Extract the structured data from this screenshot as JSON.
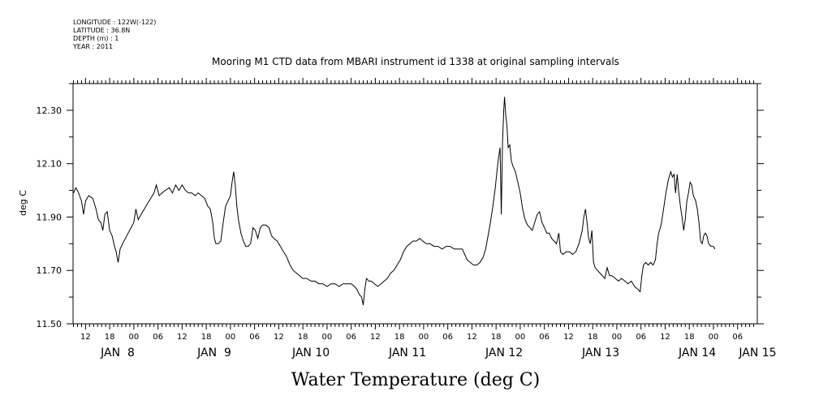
{
  "header": {
    "longitude": "LONGITUDE : 122W(-122)",
    "latitude": "LATITUDE : 36.8N",
    "depth": "DEPTH (m) : 1",
    "year": "YEAR : 2011"
  },
  "chart_data": {
    "type": "line",
    "title": "Mooring M1 CTD data from MBARI instrument id 1338 at original sampling intervals",
    "xlabel": "Water Temperature (deg C)",
    "ylabel": "deg C",
    "ylim": [
      11.5,
      12.4
    ],
    "yticks": [
      "12.30",
      "12.10",
      "11.90",
      "11.70",
      "11.50"
    ],
    "x_unit": "hours since Jan 7 2011 00:00",
    "xlim": [
      14.9,
      184.9
    ],
    "hour_ticks": [
      {
        "x": 18,
        "label": "12"
      },
      {
        "x": 24,
        "label": "18"
      },
      {
        "x": 30,
        "label": "00"
      },
      {
        "x": 36,
        "label": "06"
      },
      {
        "x": 42,
        "label": "12"
      },
      {
        "x": 48,
        "label": "18"
      },
      {
        "x": 54,
        "label": "00"
      },
      {
        "x": 60,
        "label": "06"
      },
      {
        "x": 66,
        "label": "12"
      },
      {
        "x": 72,
        "label": "18"
      },
      {
        "x": 78,
        "label": "00"
      },
      {
        "x": 84,
        "label": "06"
      },
      {
        "x": 90,
        "label": "12"
      },
      {
        "x": 96,
        "label": "18"
      },
      {
        "x": 102,
        "label": "00"
      },
      {
        "x": 108,
        "label": "06"
      },
      {
        "x": 114,
        "label": "12"
      },
      {
        "x": 120,
        "label": "18"
      },
      {
        "x": 126,
        "label": "00"
      },
      {
        "x": 132,
        "label": "06"
      },
      {
        "x": 138,
        "label": "12"
      },
      {
        "x": 144,
        "label": "18"
      },
      {
        "x": 150,
        "label": "00"
      },
      {
        "x": 156,
        "label": "06"
      },
      {
        "x": 162,
        "label": "12"
      },
      {
        "x": 168,
        "label": "18"
      },
      {
        "x": 174,
        "label": "00"
      },
      {
        "x": 180,
        "label": "06"
      }
    ],
    "day_labels": [
      {
        "x": 26,
        "label": "JAN  8"
      },
      {
        "x": 50,
        "label": "JAN  9"
      },
      {
        "x": 74,
        "label": "JAN 10"
      },
      {
        "x": 98,
        "label": "JAN 11"
      },
      {
        "x": 122,
        "label": "JAN 12"
      },
      {
        "x": 146,
        "label": "JAN 13"
      },
      {
        "x": 170,
        "label": "JAN 14"
      },
      {
        "x": 185,
        "label": "JAN 15"
      }
    ],
    "grid": false,
    "series": [
      {
        "points": [
          [
            15.0,
            11.99
          ],
          [
            15.6,
            12.01
          ],
          [
            16.3,
            11.99
          ],
          [
            17.0,
            11.96
          ],
          [
            17.5,
            11.91
          ],
          [
            18.0,
            11.96
          ],
          [
            18.8,
            11.98
          ],
          [
            19.8,
            11.97
          ],
          [
            20.6,
            11.93
          ],
          [
            21.2,
            11.89
          ],
          [
            21.8,
            11.88
          ],
          [
            22.3,
            11.85
          ],
          [
            22.8,
            11.91
          ],
          [
            23.4,
            11.92
          ],
          [
            24.0,
            11.85
          ],
          [
            24.6,
            11.83
          ],
          [
            25.2,
            11.79
          ],
          [
            25.6,
            11.77
          ],
          [
            26.1,
            11.73
          ],
          [
            26.6,
            11.78
          ],
          [
            27.2,
            11.8
          ],
          [
            27.9,
            11.82
          ],
          [
            28.6,
            11.84
          ],
          [
            29.3,
            11.86
          ],
          [
            30.0,
            11.88
          ],
          [
            30.5,
            11.93
          ],
          [
            31.1,
            11.89
          ],
          [
            31.8,
            11.91
          ],
          [
            32.6,
            11.93
          ],
          [
            33.4,
            11.95
          ],
          [
            34.2,
            11.97
          ],
          [
            35.0,
            11.99
          ],
          [
            35.6,
            12.02
          ],
          [
            36.3,
            11.98
          ],
          [
            37.0,
            11.99
          ],
          [
            37.8,
            12.0
          ],
          [
            38.8,
            12.01
          ],
          [
            39.6,
            11.99
          ],
          [
            40.4,
            12.02
          ],
          [
            41.2,
            12.0
          ],
          [
            42.0,
            12.02
          ],
          [
            42.8,
            12.0
          ],
          [
            43.6,
            11.99
          ],
          [
            44.4,
            11.99
          ],
          [
            45.2,
            11.98
          ],
          [
            46.0,
            11.99
          ],
          [
            46.8,
            11.98
          ],
          [
            47.6,
            11.97
          ],
          [
            48.4,
            11.94
          ],
          [
            49.0,
            11.93
          ],
          [
            49.6,
            11.88
          ],
          [
            50.0,
            11.82
          ],
          [
            50.4,
            11.8
          ],
          [
            51.0,
            11.8
          ],
          [
            51.6,
            11.81
          ],
          [
            52.2,
            11.88
          ],
          [
            52.8,
            11.94
          ],
          [
            53.4,
            11.96
          ],
          [
            54.0,
            11.98
          ],
          [
            54.4,
            12.03
          ],
          [
            54.8,
            12.07
          ],
          [
            55.2,
            12.02
          ],
          [
            55.6,
            11.94
          ],
          [
            56.0,
            11.89
          ],
          [
            56.6,
            11.84
          ],
          [
            57.2,
            11.81
          ],
          [
            57.8,
            11.79
          ],
          [
            58.4,
            11.79
          ],
          [
            59.0,
            11.8
          ],
          [
            59.6,
            11.86
          ],
          [
            60.2,
            11.85
          ],
          [
            60.8,
            11.82
          ],
          [
            61.4,
            11.86
          ],
          [
            62.0,
            11.87
          ],
          [
            62.8,
            11.87
          ],
          [
            63.6,
            11.86
          ],
          [
            64.2,
            11.83
          ],
          [
            64.8,
            11.82
          ],
          [
            65.6,
            11.81
          ],
          [
            66.4,
            11.79
          ],
          [
            67.2,
            11.77
          ],
          [
            68.0,
            11.75
          ],
          [
            68.8,
            11.72
          ],
          [
            69.6,
            11.7
          ],
          [
            70.4,
            11.69
          ],
          [
            71.2,
            11.68
          ],
          [
            72.0,
            11.67
          ],
          [
            73.0,
            11.67
          ],
          [
            74.0,
            11.66
          ],
          [
            75.0,
            11.66
          ],
          [
            76.0,
            11.65
          ],
          [
            77.0,
            11.65
          ],
          [
            78.0,
            11.64
          ],
          [
            79.0,
            11.65
          ],
          [
            80.0,
            11.65
          ],
          [
            81.0,
            11.64
          ],
          [
            82.0,
            11.65
          ],
          [
            83.0,
            11.65
          ],
          [
            84.0,
            11.65
          ],
          [
            84.8,
            11.64
          ],
          [
            85.4,
            11.63
          ],
          [
            86.0,
            11.61
          ],
          [
            86.6,
            11.6
          ],
          [
            87.0,
            11.57
          ],
          [
            87.4,
            11.63
          ],
          [
            87.8,
            11.67
          ],
          [
            88.4,
            11.66
          ],
          [
            89.0,
            11.66
          ],
          [
            89.8,
            11.65
          ],
          [
            90.6,
            11.64
          ],
          [
            91.4,
            11.65
          ],
          [
            92.2,
            11.66
          ],
          [
            93.0,
            11.67
          ],
          [
            93.8,
            11.69
          ],
          [
            94.6,
            11.7
          ],
          [
            95.4,
            11.72
          ],
          [
            96.2,
            11.74
          ],
          [
            97.0,
            11.77
          ],
          [
            97.8,
            11.79
          ],
          [
            98.6,
            11.8
          ],
          [
            99.4,
            11.81
          ],
          [
            100.2,
            11.81
          ],
          [
            101.0,
            11.82
          ],
          [
            101.8,
            11.81
          ],
          [
            102.6,
            11.8
          ],
          [
            103.6,
            11.8
          ],
          [
            104.6,
            11.79
          ],
          [
            105.6,
            11.79
          ],
          [
            106.6,
            11.78
          ],
          [
            107.6,
            11.79
          ],
          [
            108.6,
            11.79
          ],
          [
            109.6,
            11.78
          ],
          [
            110.6,
            11.78
          ],
          [
            111.6,
            11.78
          ],
          [
            112.2,
            11.76
          ],
          [
            112.8,
            11.74
          ],
          [
            113.6,
            11.73
          ],
          [
            114.4,
            11.72
          ],
          [
            115.2,
            11.72
          ],
          [
            116.0,
            11.73
          ],
          [
            116.8,
            11.75
          ],
          [
            117.4,
            11.78
          ],
          [
            118.0,
            11.83
          ],
          [
            118.6,
            11.88
          ],
          [
            119.2,
            11.94
          ],
          [
            119.8,
            12.01
          ],
          [
            120.2,
            12.07
          ],
          [
            120.6,
            12.12
          ],
          [
            121.0,
            12.16
          ],
          [
            121.3,
            11.91
          ],
          [
            121.6,
            12.18
          ],
          [
            121.9,
            12.3
          ],
          [
            122.1,
            12.35
          ],
          [
            122.4,
            12.28
          ],
          [
            122.7,
            12.24
          ],
          [
            123.0,
            12.16
          ],
          [
            123.4,
            12.17
          ],
          [
            123.8,
            12.11
          ],
          [
            124.2,
            12.09
          ],
          [
            124.8,
            12.07
          ],
          [
            125.4,
            12.03
          ],
          [
            126.0,
            11.99
          ],
          [
            126.6,
            11.93
          ],
          [
            127.2,
            11.89
          ],
          [
            127.8,
            11.87
          ],
          [
            128.4,
            11.86
          ],
          [
            129.0,
            11.85
          ],
          [
            129.6,
            11.88
          ],
          [
            130.2,
            11.91
          ],
          [
            130.8,
            11.92
          ],
          [
            131.4,
            11.88
          ],
          [
            132.0,
            11.86
          ],
          [
            132.6,
            11.84
          ],
          [
            133.2,
            11.84
          ],
          [
            133.8,
            11.82
          ],
          [
            134.4,
            11.81
          ],
          [
            135.0,
            11.8
          ],
          [
            135.6,
            11.84
          ],
          [
            136.0,
            11.77
          ],
          [
            136.6,
            11.76
          ],
          [
            137.4,
            11.77
          ],
          [
            138.2,
            11.77
          ],
          [
            139.0,
            11.76
          ],
          [
            139.8,
            11.77
          ],
          [
            140.6,
            11.8
          ],
          [
            141.4,
            11.85
          ],
          [
            141.8,
            11.9
          ],
          [
            142.2,
            11.93
          ],
          [
            142.6,
            11.88
          ],
          [
            143.0,
            11.82
          ],
          [
            143.4,
            11.8
          ],
          [
            143.8,
            11.85
          ],
          [
            144.2,
            11.73
          ],
          [
            144.6,
            11.71
          ],
          [
            145.2,
            11.7
          ],
          [
            145.8,
            11.69
          ],
          [
            146.4,
            11.68
          ],
          [
            147.0,
            11.67
          ],
          [
            147.6,
            11.71
          ],
          [
            148.2,
            11.68
          ],
          [
            148.8,
            11.68
          ],
          [
            149.6,
            11.67
          ],
          [
            150.4,
            11.66
          ],
          [
            151.2,
            11.67
          ],
          [
            152.0,
            11.66
          ],
          [
            152.8,
            11.65
          ],
          [
            153.6,
            11.66
          ],
          [
            154.4,
            11.64
          ],
          [
            155.2,
            11.63
          ],
          [
            155.8,
            11.62
          ],
          [
            156.2,
            11.68
          ],
          [
            156.6,
            11.72
          ],
          [
            157.2,
            11.73
          ],
          [
            157.8,
            11.72
          ],
          [
            158.4,
            11.73
          ],
          [
            159.0,
            11.72
          ],
          [
            159.6,
            11.74
          ],
          [
            160.0,
            11.8
          ],
          [
            160.4,
            11.84
          ],
          [
            161.0,
            11.87
          ],
          [
            161.6,
            11.93
          ],
          [
            162.2,
            11.99
          ],
          [
            162.8,
            12.04
          ],
          [
            163.4,
            12.07
          ],
          [
            163.8,
            12.05
          ],
          [
            164.2,
            12.06
          ],
          [
            164.6,
            11.99
          ],
          [
            165.0,
            12.06
          ],
          [
            165.4,
            11.99
          ],
          [
            165.8,
            11.94
          ],
          [
            166.2,
            11.9
          ],
          [
            166.6,
            11.85
          ],
          [
            167.0,
            11.89
          ],
          [
            167.4,
            11.96
          ],
          [
            167.8,
            11.99
          ],
          [
            168.2,
            12.03
          ],
          [
            168.6,
            12.02
          ],
          [
            169.0,
            11.98
          ],
          [
            169.6,
            11.96
          ],
          [
            170.0,
            11.93
          ],
          [
            170.4,
            11.88
          ],
          [
            170.8,
            11.81
          ],
          [
            171.2,
            11.8
          ],
          [
            171.6,
            11.83
          ],
          [
            172.0,
            11.84
          ],
          [
            172.4,
            11.83
          ],
          [
            172.8,
            11.8
          ],
          [
            173.4,
            11.79
          ],
          [
            174.0,
            11.79
          ],
          [
            174.4,
            11.78
          ]
        ]
      }
    ]
  }
}
